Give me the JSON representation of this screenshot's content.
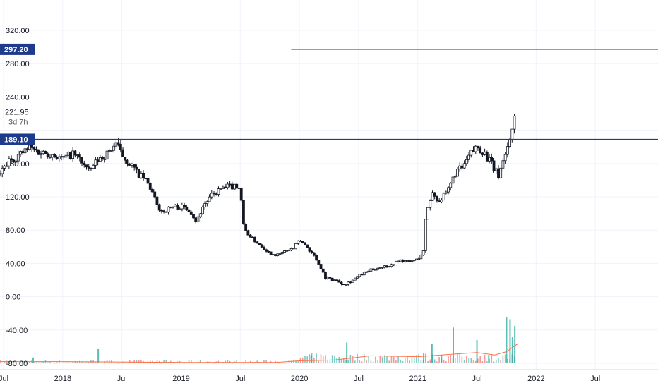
{
  "chart_data": {
    "type": "candlestick",
    "ylim": [
      -80,
      320
    ],
    "y_ticks": [
      "320.00",
      "280.00",
      "240.00",
      "160.00",
      "120.00",
      "80.00",
      "40.00",
      "0.00",
      "-40.00",
      "-80.00"
    ],
    "y_tick_values": [
      320,
      280,
      240,
      160,
      120,
      80,
      40,
      0,
      -40,
      -80
    ],
    "x_ticks": [
      "Jul",
      "2018",
      "Jul",
      "2019",
      "Jul",
      "2020",
      "Jul",
      "2021",
      "Jul",
      "2022",
      "Jul"
    ],
    "x_tick_dates": [
      2017.5,
      2018.0,
      2018.5,
      2019.0,
      2019.5,
      2020.0,
      2020.5,
      2021.0,
      2021.5,
      2022.0,
      2022.5
    ],
    "xlim": [
      2017.47,
      2023.03
    ],
    "horizontal_lines": [
      {
        "label": "297.20",
        "value": 297.2,
        "start": 2019.93,
        "color": "#1e3a8a"
      },
      {
        "label": "189.10",
        "value": 189.1,
        "start": 2017.47,
        "color": "#1e3a8a"
      }
    ],
    "last_price": {
      "label": "221.95",
      "value": 221.95,
      "countdown": "3d 7h"
    },
    "price_path": [
      [
        2017.47,
        148
      ],
      [
        2017.55,
        163
      ],
      [
        2017.65,
        172
      ],
      [
        2017.72,
        179
      ],
      [
        2017.8,
        174
      ],
      [
        2017.9,
        172
      ],
      [
        2018.0,
        165
      ],
      [
        2018.08,
        172
      ],
      [
        2018.15,
        165
      ],
      [
        2018.22,
        150
      ],
      [
        2018.3,
        165
      ],
      [
        2018.38,
        172
      ],
      [
        2018.45,
        185
      ],
      [
        2018.5,
        170
      ],
      [
        2018.57,
        160
      ],
      [
        2018.63,
        148
      ],
      [
        2018.7,
        140
      ],
      [
        2018.75,
        128
      ],
      [
        2018.8,
        108
      ],
      [
        2018.85,
        102
      ],
      [
        2018.92,
        108
      ],
      [
        2019.0,
        108
      ],
      [
        2019.07,
        105
      ],
      [
        2019.13,
        90
      ],
      [
        2019.18,
        108
      ],
      [
        2019.25,
        120
      ],
      [
        2019.32,
        128
      ],
      [
        2019.4,
        132
      ],
      [
        2019.47,
        134
      ],
      [
        2019.5,
        130
      ],
      [
        2019.53,
        82
      ],
      [
        2019.6,
        70
      ],
      [
        2019.67,
        62
      ],
      [
        2019.75,
        52
      ],
      [
        2019.82,
        50
      ],
      [
        2019.88,
        55
      ],
      [
        2019.95,
        58
      ],
      [
        2020.0,
        68
      ],
      [
        2020.05,
        62
      ],
      [
        2020.12,
        50
      ],
      [
        2020.18,
        35
      ],
      [
        2020.22,
        23
      ],
      [
        2020.3,
        20
      ],
      [
        2020.38,
        15
      ],
      [
        2020.45,
        20
      ],
      [
        2020.5,
        25
      ],
      [
        2020.6,
        32
      ],
      [
        2020.7,
        36
      ],
      [
        2020.78,
        38
      ],
      [
        2020.85,
        44
      ],
      [
        2020.92,
        42
      ],
      [
        2021.0,
        45
      ],
      [
        2021.05,
        55
      ],
      [
        2021.07,
        100
      ],
      [
        2021.12,
        125
      ],
      [
        2021.18,
        115
      ],
      [
        2021.25,
        125
      ],
      [
        2021.32,
        150
      ],
      [
        2021.38,
        155
      ],
      [
        2021.45,
        172
      ],
      [
        2021.5,
        180
      ],
      [
        2021.55,
        175
      ],
      [
        2021.62,
        160
      ],
      [
        2021.68,
        145
      ],
      [
        2021.73,
        168
      ],
      [
        2021.78,
        190
      ],
      [
        2021.82,
        221.95
      ]
    ],
    "volume": {
      "baseline": -80,
      "spikes": [
        [
          2017.75,
          -73
        ],
        [
          2018.3,
          -63
        ],
        [
          2020.1,
          -70
        ],
        [
          2020.4,
          -55
        ],
        [
          2021.05,
          -68
        ],
        [
          2021.12,
          -57
        ],
        [
          2021.2,
          -70
        ],
        [
          2021.3,
          -37
        ],
        [
          2021.5,
          -52
        ],
        [
          2021.6,
          -70
        ],
        [
          2021.75,
          -25
        ],
        [
          2021.78,
          -27
        ],
        [
          2021.8,
          -48
        ],
        [
          2021.82,
          -35
        ]
      ],
      "moving_average": [
        [
          2017.47,
          -78
        ],
        [
          2018.0,
          -78
        ],
        [
          2019.0,
          -79
        ],
        [
          2019.8,
          -79
        ],
        [
          2020.0,
          -77
        ],
        [
          2020.3,
          -76
        ],
        [
          2020.6,
          -71
        ],
        [
          2021.0,
          -72
        ],
        [
          2021.2,
          -70
        ],
        [
          2021.5,
          -67
        ],
        [
          2021.65,
          -70
        ],
        [
          2021.75,
          -66
        ],
        [
          2021.85,
          -56
        ]
      ]
    },
    "colors": {
      "up": "#ffffff",
      "down": "#131722",
      "wick": "#131722",
      "vol_up": "#26a69a",
      "vol_down": "#ef5350",
      "vol_ma": "#ff7043",
      "grid": "#f0f3fa",
      "line": "#1e3a8a",
      "badge": "#1e3a8a"
    }
  }
}
